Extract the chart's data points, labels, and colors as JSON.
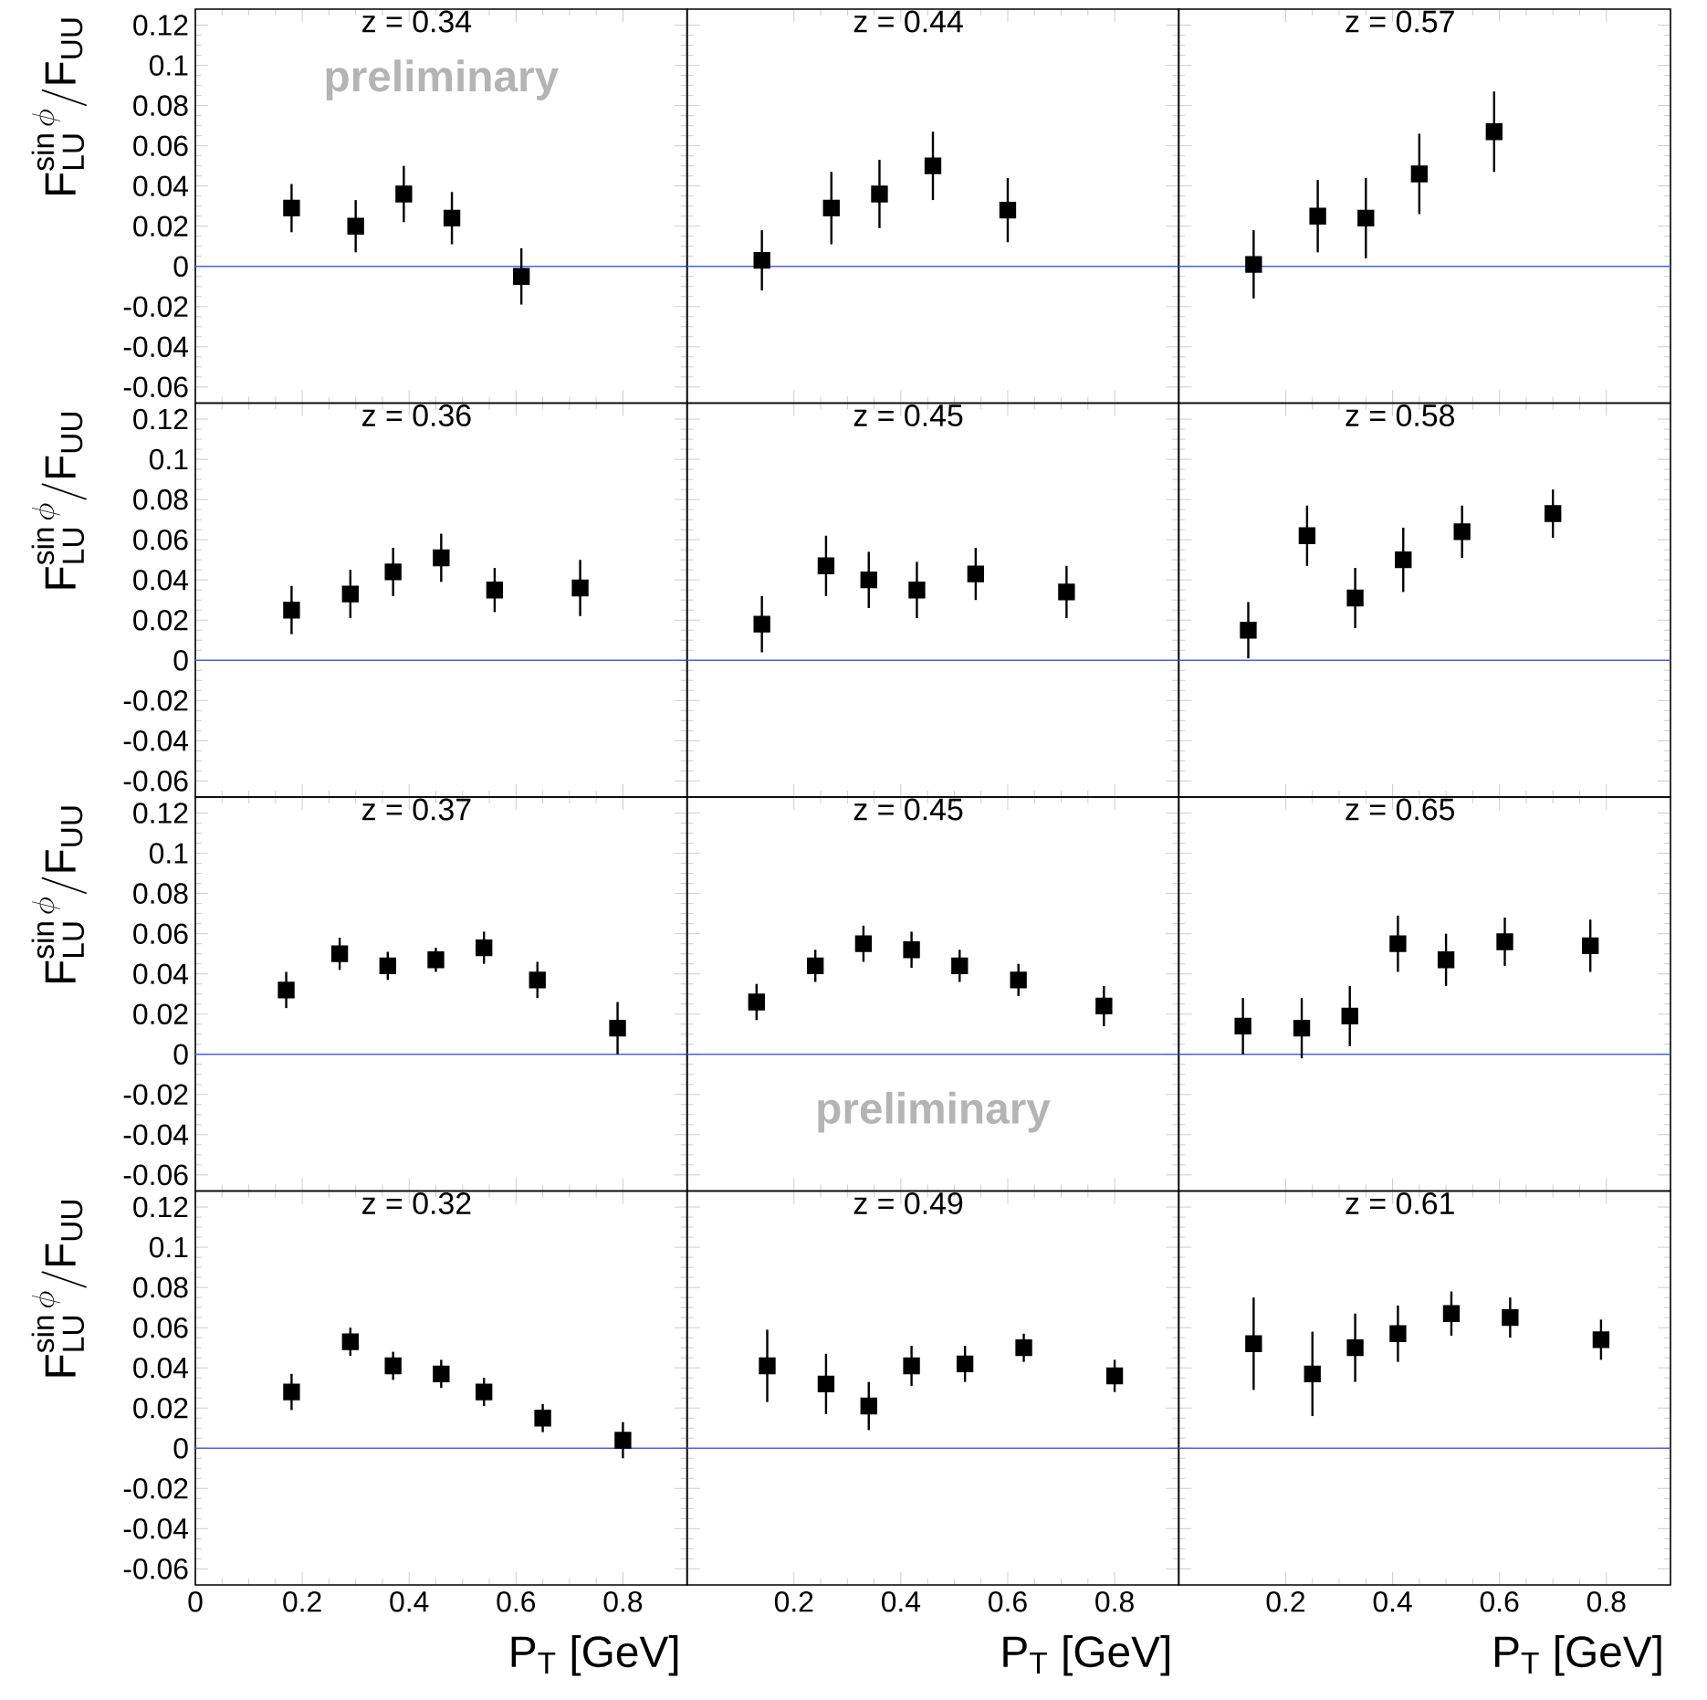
{
  "chart_data": [
    {
      "type": "scatter",
      "title": "z = 0.34",
      "ylabel": "\\mathrm{F}^{\\sin\\phi}_{\\mathrm{LU}}/\\mathrm{F}_{\\mathrm{UU}}",
      "annotations": [
        "preliminary"
      ],
      "x": [
        0.18,
        0.3,
        0.39,
        0.48,
        0.61
      ],
      "values": [
        0.029,
        0.02,
        0.036,
        0.024,
        -0.005
      ],
      "errors": [
        0.012,
        0.013,
        0.014,
        0.013,
        0.014
      ],
      "color": "#000000",
      "marker": "square",
      "xlim": [
        0,
        0.92
      ],
      "ylim": [
        -0.068,
        0.128
      ],
      "xticks": [
        0,
        0.2,
        0.4,
        0.6,
        0.8
      ],
      "yticks": [
        -0.06,
        -0.04,
        -0.02,
        0,
        0.02,
        0.04,
        0.06,
        0.08,
        0.1,
        0.12
      ],
      "ref_lines": [
        {
          "axis": "y",
          "value": 0,
          "color": "#5060e0"
        }
      ],
      "tick_labels": "y"
    },
    {
      "type": "scatter",
      "title": "z = 0.44",
      "x": [
        0.14,
        0.27,
        0.36,
        0.46,
        0.6
      ],
      "values": [
        0.003,
        0.029,
        0.036,
        0.05,
        0.028
      ],
      "errors": [
        0.015,
        0.018,
        0.017,
        0.017,
        0.016
      ],
      "color": "#000000",
      "marker": "square",
      "xlim": [
        0,
        0.92
      ],
      "ylim": [
        -0.068,
        0.128
      ],
      "xticks": [
        0.2,
        0.4,
        0.6,
        0.8
      ],
      "yticks": [
        -0.06,
        -0.04,
        -0.02,
        0,
        0.02,
        0.04,
        0.06,
        0.08,
        0.1,
        0.12
      ],
      "ref_lines": [
        {
          "axis": "y",
          "value": 0,
          "color": "#5060e0"
        }
      ],
      "tick_labels": false
    },
    {
      "type": "scatter",
      "title": "z = 0.57",
      "x": [
        0.14,
        0.26,
        0.35,
        0.45,
        0.59
      ],
      "values": [
        0.001,
        0.025,
        0.024,
        0.046,
        0.067
      ],
      "errors": [
        0.017,
        0.018,
        0.02,
        0.02,
        0.02
      ],
      "color": "#000000",
      "marker": "square",
      "xlim": [
        0,
        0.92
      ],
      "ylim": [
        -0.068,
        0.128
      ],
      "xticks": [
        0.2,
        0.4,
        0.6,
        0.8
      ],
      "yticks": [
        -0.06,
        -0.04,
        -0.02,
        0,
        0.02,
        0.04,
        0.06,
        0.08,
        0.1,
        0.12
      ],
      "ref_lines": [
        {
          "axis": "y",
          "value": 0,
          "color": "#5060e0"
        }
      ],
      "tick_labels": false
    },
    {
      "type": "scatter",
      "title": "z = 0.36",
      "ylabel": "\\mathrm{F}^{\\sin\\phi}_{\\mathrm{LU}}/\\mathrm{F}_{\\mathrm{UU}}",
      "x": [
        0.18,
        0.29,
        0.37,
        0.46,
        0.56,
        0.72
      ],
      "values": [
        0.025,
        0.033,
        0.044,
        0.051,
        0.035,
        0.036
      ],
      "errors": [
        0.012,
        0.012,
        0.012,
        0.012,
        0.011,
        0.014
      ],
      "color": "#000000",
      "marker": "square",
      "xlim": [
        0,
        0.92
      ],
      "ylim": [
        -0.068,
        0.128
      ],
      "xticks": [
        0,
        0.2,
        0.4,
        0.6,
        0.8
      ],
      "yticks": [
        -0.06,
        -0.04,
        -0.02,
        0,
        0.02,
        0.04,
        0.06,
        0.08,
        0.1,
        0.12
      ],
      "ref_lines": [
        {
          "axis": "y",
          "value": 0,
          "color": "#5060e0"
        }
      ],
      "tick_labels": "y"
    },
    {
      "type": "scatter",
      "title": "z = 0.45",
      "x": [
        0.14,
        0.26,
        0.34,
        0.43,
        0.54,
        0.71
      ],
      "values": [
        0.018,
        0.047,
        0.04,
        0.035,
        0.043,
        0.034
      ],
      "errors": [
        0.014,
        0.015,
        0.014,
        0.014,
        0.013,
        0.013
      ],
      "color": "#000000",
      "marker": "square",
      "xlim": [
        0,
        0.92
      ],
      "ylim": [
        -0.068,
        0.128
      ],
      "xticks": [
        0.2,
        0.4,
        0.6,
        0.8
      ],
      "yticks": [
        -0.06,
        -0.04,
        -0.02,
        0,
        0.02,
        0.04,
        0.06,
        0.08,
        0.1,
        0.12
      ],
      "ref_lines": [
        {
          "axis": "y",
          "value": 0,
          "color": "#5060e0"
        }
      ],
      "tick_labels": false
    },
    {
      "type": "scatter",
      "title": "z = 0.58",
      "x": [
        0.13,
        0.24,
        0.33,
        0.42,
        0.53,
        0.7
      ],
      "values": [
        0.015,
        0.062,
        0.031,
        0.05,
        0.064,
        0.073
      ],
      "errors": [
        0.014,
        0.015,
        0.015,
        0.016,
        0.013,
        0.012
      ],
      "color": "#000000",
      "marker": "square",
      "xlim": [
        0,
        0.92
      ],
      "ylim": [
        -0.068,
        0.128
      ],
      "xticks": [
        0.2,
        0.4,
        0.6,
        0.8
      ],
      "yticks": [
        -0.06,
        -0.04,
        -0.02,
        0,
        0.02,
        0.04,
        0.06,
        0.08,
        0.1,
        0.12
      ],
      "ref_lines": [
        {
          "axis": "y",
          "value": 0,
          "color": "#5060e0"
        }
      ],
      "tick_labels": false
    },
    {
      "type": "scatter",
      "title": "z = 0.37",
      "ylabel": "\\mathrm{F}^{\\sin\\phi}_{\\mathrm{LU}}/\\mathrm{F}_{\\mathrm{UU}}",
      "x": [
        0.17,
        0.27,
        0.36,
        0.45,
        0.54,
        0.64,
        0.79
      ],
      "values": [
        0.032,
        0.05,
        0.044,
        0.047,
        0.053,
        0.037,
        0.013
      ],
      "errors": [
        0.009,
        0.008,
        0.007,
        0.006,
        0.008,
        0.009,
        0.013
      ],
      "color": "#000000",
      "marker": "square",
      "xlim": [
        0,
        0.92
      ],
      "ylim": [
        -0.068,
        0.128
      ],
      "xticks": [
        0,
        0.2,
        0.4,
        0.6,
        0.8
      ],
      "yticks": [
        -0.06,
        -0.04,
        -0.02,
        0,
        0.02,
        0.04,
        0.06,
        0.08,
        0.1,
        0.12
      ],
      "ref_lines": [
        {
          "axis": "y",
          "value": 0,
          "color": "#5060e0"
        }
      ],
      "tick_labels": "y"
    },
    {
      "type": "scatter",
      "title": "z = 0.45",
      "annotations": [
        "preliminary"
      ],
      "x": [
        0.13,
        0.24,
        0.33,
        0.42,
        0.51,
        0.62,
        0.78
      ],
      "values": [
        0.026,
        0.044,
        0.055,
        0.052,
        0.044,
        0.037,
        0.024
      ],
      "errors": [
        0.009,
        0.008,
        0.009,
        0.009,
        0.008,
        0.008,
        0.01
      ],
      "color": "#000000",
      "marker": "square",
      "xlim": [
        0,
        0.92
      ],
      "ylim": [
        -0.068,
        0.128
      ],
      "xticks": [
        0.2,
        0.4,
        0.6,
        0.8
      ],
      "yticks": [
        -0.06,
        -0.04,
        -0.02,
        0,
        0.02,
        0.04,
        0.06,
        0.08,
        0.1,
        0.12
      ],
      "ref_lines": [
        {
          "axis": "y",
          "value": 0,
          "color": "#5060e0"
        }
      ],
      "tick_labels": false
    },
    {
      "type": "scatter",
      "title": "z = 0.65",
      "x": [
        0.12,
        0.23,
        0.32,
        0.41,
        0.5,
        0.61,
        0.77
      ],
      "values": [
        0.014,
        0.013,
        0.019,
        0.055,
        0.047,
        0.056,
        0.054
      ],
      "errors": [
        0.014,
        0.015,
        0.015,
        0.014,
        0.013,
        0.012,
        0.013
      ],
      "color": "#000000",
      "marker": "square",
      "xlim": [
        0,
        0.92
      ],
      "ylim": [
        -0.068,
        0.128
      ],
      "xticks": [
        0.2,
        0.4,
        0.6,
        0.8
      ],
      "yticks": [
        -0.06,
        -0.04,
        -0.02,
        0,
        0.02,
        0.04,
        0.06,
        0.08,
        0.1,
        0.12
      ],
      "ref_lines": [
        {
          "axis": "y",
          "value": 0,
          "color": "#5060e0"
        }
      ],
      "tick_labels": false
    },
    {
      "type": "scatter",
      "title": "z = 0.32",
      "ylabel": "\\mathrm{F}^{\\sin\\phi}_{\\mathrm{LU}}/\\mathrm{F}_{\\mathrm{UU}}",
      "xlabel": "P$_{T}$ [GeV]",
      "x": [
        0.18,
        0.29,
        0.37,
        0.46,
        0.54,
        0.65,
        0.8
      ],
      "values": [
        0.028,
        0.053,
        0.041,
        0.037,
        0.028,
        0.015,
        0.004
      ],
      "errors": [
        0.009,
        0.007,
        0.007,
        0.007,
        0.007,
        0.007,
        0.009
      ],
      "color": "#000000",
      "marker": "square",
      "xlim": [
        0,
        0.92
      ],
      "ylim": [
        -0.068,
        0.128
      ],
      "xticks": [
        0,
        0.2,
        0.4,
        0.6,
        0.8
      ],
      "yticks": [
        -0.06,
        -0.04,
        -0.02,
        0,
        0.02,
        0.04,
        0.06,
        0.08,
        0.1,
        0.12
      ],
      "ref_lines": [
        {
          "axis": "y",
          "value": 0,
          "color": "#5060e0"
        }
      ]
    },
    {
      "type": "scatter",
      "title": "z = 0.49",
      "xlabel": "P$_{T}$ [GeV]",
      "x": [
        0.15,
        0.26,
        0.34,
        0.42,
        0.52,
        0.63,
        0.8
      ],
      "values": [
        0.041,
        0.032,
        0.021,
        0.041,
        0.042,
        0.05,
        0.036
      ],
      "errors": [
        0.018,
        0.015,
        0.012,
        0.01,
        0.009,
        0.007,
        0.008
      ],
      "color": "#000000",
      "marker": "square",
      "xlim": [
        0,
        0.92
      ],
      "ylim": [
        -0.068,
        0.128
      ],
      "xticks": [
        0.2,
        0.4,
        0.6,
        0.8
      ],
      "yticks": [
        -0.06,
        -0.04,
        -0.02,
        0,
        0.02,
        0.04,
        0.06,
        0.08,
        0.1,
        0.12
      ],
      "ref_lines": [
        {
          "axis": "y",
          "value": 0,
          "color": "#5060e0"
        }
      ],
      "tick_labels": "x"
    },
    {
      "type": "scatter",
      "title": "z = 0.61",
      "xlabel": "P$_{T}$ [GeV]",
      "x": [
        0.14,
        0.25,
        0.33,
        0.41,
        0.51,
        0.62,
        0.79
      ],
      "values": [
        0.052,
        0.037,
        0.05,
        0.057,
        0.067,
        0.065,
        0.054
      ],
      "errors": [
        0.023,
        0.021,
        0.017,
        0.014,
        0.011,
        0.01,
        0.01
      ],
      "color": "#000000",
      "marker": "square",
      "xlim": [
        0,
        0.92
      ],
      "ylim": [
        -0.068,
        0.128
      ],
      "xticks": [
        0.2,
        0.4,
        0.6,
        0.8
      ],
      "yticks": [
        -0.06,
        -0.04,
        -0.02,
        0,
        0.02,
        0.04,
        0.06,
        0.08,
        0.1,
        0.12
      ],
      "ref_lines": [
        {
          "axis": "y",
          "value": 0,
          "color": "#5060e0"
        }
      ],
      "tick_labels": "x"
    }
  ]
}
